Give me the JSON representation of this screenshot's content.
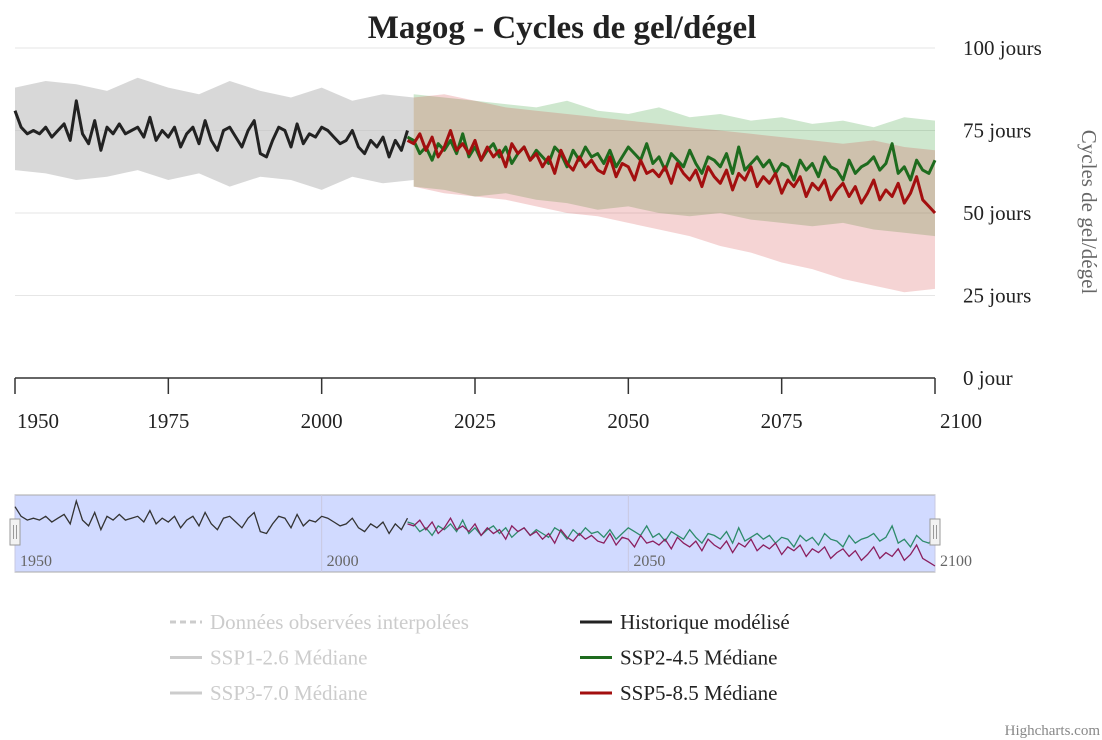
{
  "chart_data": {
    "type": "line",
    "title": "Magog - Cycles de gel/dégel",
    "y_axis_title": "Cycles de gel/dégel",
    "credits": "Highcharts.com",
    "xlim": [
      1950,
      2100
    ],
    "xticks": [
      1950,
      1975,
      2000,
      2025,
      2050,
      2075,
      2100
    ],
    "ylim": [
      0,
      100
    ],
    "yticks": [
      {
        "value": 0,
        "label": "0 jour"
      },
      {
        "value": 25,
        "label": "25 jours"
      },
      {
        "value": 50,
        "label": "50 jours"
      },
      {
        "value": 75,
        "label": "75 jours"
      },
      {
        "value": 100,
        "label": "100 jours"
      }
    ],
    "grid": true,
    "navigator_xticks": [
      1950,
      2000,
      2050,
      2100
    ],
    "x": [
      1950,
      1951,
      1952,
      1953,
      1954,
      1955,
      1956,
      1957,
      1958,
      1959,
      1960,
      1961,
      1962,
      1963,
      1964,
      1965,
      1966,
      1967,
      1968,
      1969,
      1970,
      1971,
      1972,
      1973,
      1974,
      1975,
      1976,
      1977,
      1978,
      1979,
      1980,
      1981,
      1982,
      1983,
      1984,
      1985,
      1986,
      1987,
      1988,
      1989,
      1990,
      1991,
      1992,
      1993,
      1994,
      1995,
      1996,
      1997,
      1998,
      1999,
      2000,
      2001,
      2002,
      2003,
      2004,
      2005,
      2006,
      2007,
      2008,
      2009,
      2010,
      2011,
      2012,
      2013,
      2014,
      2015,
      2016,
      2017,
      2018,
      2019,
      2020,
      2021,
      2022,
      2023,
      2024,
      2025,
      2026,
      2027,
      2028,
      2029,
      2030,
      2031,
      2032,
      2033,
      2034,
      2035,
      2036,
      2037,
      2038,
      2039,
      2040,
      2041,
      2042,
      2043,
      2044,
      2045,
      2046,
      2047,
      2048,
      2049,
      2050,
      2051,
      2052,
      2053,
      2054,
      2055,
      2056,
      2057,
      2058,
      2059,
      2060,
      2061,
      2062,
      2063,
      2064,
      2065,
      2066,
      2067,
      2068,
      2069,
      2070,
      2071,
      2072,
      2073,
      2074,
      2075,
      2076,
      2077,
      2078,
      2079,
      2080,
      2081,
      2082,
      2083,
      2084,
      2085,
      2086,
      2087,
      2088,
      2089,
      2090,
      2091,
      2092,
      2093,
      2094,
      2095,
      2096,
      2097,
      2098,
      2099,
      2100
    ],
    "series": [
      {
        "name": "Données observées interpolées",
        "visible": false,
        "dashed": true
      },
      {
        "name": "Historique modélisé",
        "visible": true,
        "color": "#222222",
        "navigator_color": "#333333",
        "values": [
          81,
          76,
          74,
          75,
          74,
          76,
          73,
          75,
          77,
          72,
          84,
          74,
          71,
          78,
          69,
          76,
          74,
          77,
          74,
          75,
          76,
          73,
          79,
          72,
          75,
          73,
          76,
          70,
          74,
          76,
          71,
          78,
          72,
          69,
          75,
          76,
          73,
          70,
          75,
          78,
          68,
          67,
          72,
          76,
          75,
          70,
          77,
          71,
          74,
          73,
          76,
          75,
          73,
          71,
          72,
          75,
          70,
          68,
          72,
          70,
          73,
          67,
          72,
          69,
          75,
          null,
          null,
          null,
          null,
          null,
          null,
          null,
          null,
          null,
          null,
          null,
          null,
          null,
          null,
          null,
          null,
          null,
          null,
          null,
          null,
          null,
          null,
          null,
          null,
          null,
          null,
          null,
          null,
          null,
          null,
          null,
          null,
          null,
          null,
          null,
          null,
          null,
          null,
          null,
          null,
          null,
          null,
          null,
          null,
          null,
          null,
          null,
          null,
          null,
          null,
          null,
          null,
          null,
          null,
          null,
          null,
          null,
          null,
          null,
          null,
          null,
          null,
          null,
          null,
          null,
          null,
          null,
          null,
          null,
          null,
          null,
          null,
          null,
          null,
          null,
          null,
          null,
          null,
          null,
          null,
          null,
          null,
          null,
          null,
          null,
          null
        ],
        "range": {
          "color": "rgba(190,190,190,0.6)",
          "x": [
            1950,
            1955,
            1960,
            1965,
            1970,
            1975,
            1980,
            1985,
            1990,
            1995,
            2000,
            2005,
            2010,
            2015
          ],
          "low": [
            63,
            62,
            60,
            61,
            63,
            60,
            62,
            58,
            61,
            60,
            57,
            61,
            59,
            60
          ],
          "high": [
            88,
            90,
            89,
            87,
            91,
            88,
            86,
            90,
            87,
            85,
            88,
            84,
            86,
            85
          ]
        }
      },
      {
        "name": "SSP1-2.6 Médiane",
        "visible": false
      },
      {
        "name": "SSP2-4.5 Médiane",
        "visible": true,
        "color": "#1e6b1e",
        "navigator_color": "#2e8b6b",
        "values": [
          null,
          null,
          null,
          null,
          null,
          null,
          null,
          null,
          null,
          null,
          null,
          null,
          null,
          null,
          null,
          null,
          null,
          null,
          null,
          null,
          null,
          null,
          null,
          null,
          null,
          null,
          null,
          null,
          null,
          null,
          null,
          null,
          null,
          null,
          null,
          null,
          null,
          null,
          null,
          null,
          null,
          null,
          null,
          null,
          null,
          null,
          null,
          null,
          null,
          null,
          null,
          null,
          null,
          null,
          null,
          null,
          null,
          null,
          null,
          null,
          null,
          null,
          null,
          null,
          73,
          72,
          68,
          70,
          66,
          71,
          69,
          72,
          68,
          74,
          67,
          70,
          66,
          69,
          71,
          67,
          70,
          65,
          68,
          70,
          66,
          69,
          67,
          65,
          70,
          68,
          64,
          69,
          66,
          70,
          67,
          68,
          65,
          69,
          64,
          67,
          70,
          68,
          66,
          71,
          65,
          67,
          63,
          68,
          66,
          64,
          69,
          65,
          62,
          67,
          66,
          64,
          68,
          62,
          70,
          63,
          65,
          67,
          64,
          66,
          62,
          65,
          64,
          60,
          66,
          63,
          65,
          61,
          67,
          64,
          63,
          60,
          66,
          62,
          64,
          65,
          67,
          63,
          65,
          71,
          62,
          64,
          60,
          66,
          63,
          62,
          66
        ],
        "range": {
          "color": "rgba(60,160,60,0.25)",
          "x": [
            2015,
            2020,
            2025,
            2030,
            2035,
            2040,
            2045,
            2050,
            2055,
            2060,
            2065,
            2070,
            2075,
            2080,
            2085,
            2090,
            2095,
            2100
          ],
          "low": [
            58,
            57,
            55,
            56,
            54,
            53,
            51,
            52,
            50,
            49,
            50,
            48,
            47,
            46,
            47,
            45,
            44,
            43
          ],
          "high": [
            86,
            85,
            84,
            83,
            82,
            84,
            81,
            80,
            82,
            79,
            80,
            78,
            79,
            77,
            78,
            76,
            79,
            78
          ]
        }
      },
      {
        "name": "SSP3-7.0 Médiane",
        "visible": false
      },
      {
        "name": "SSP5-8.5 Médiane",
        "visible": true,
        "color": "#a30f0f",
        "navigator_color": "#8b1f5f",
        "values": [
          null,
          null,
          null,
          null,
          null,
          null,
          null,
          null,
          null,
          null,
          null,
          null,
          null,
          null,
          null,
          null,
          null,
          null,
          null,
          null,
          null,
          null,
          null,
          null,
          null,
          null,
          null,
          null,
          null,
          null,
          null,
          null,
          null,
          null,
          null,
          null,
          null,
          null,
          null,
          null,
          null,
          null,
          null,
          null,
          null,
          null,
          null,
          null,
          null,
          null,
          null,
          null,
          null,
          null,
          null,
          null,
          null,
          null,
          null,
          null,
          null,
          null,
          null,
          null,
          72,
          71,
          74,
          69,
          73,
          67,
          70,
          75,
          69,
          71,
          68,
          72,
          66,
          70,
          67,
          69,
          64,
          71,
          68,
          70,
          66,
          68,
          64,
          67,
          62,
          69,
          65,
          63,
          67,
          64,
          66,
          63,
          62,
          67,
          61,
          65,
          64,
          60,
          66,
          62,
          63,
          61,
          64,
          59,
          65,
          62,
          60,
          63,
          58,
          64,
          61,
          59,
          63,
          57,
          62,
          60,
          64,
          58,
          61,
          59,
          62,
          56,
          60,
          58,
          61,
          55,
          59,
          57,
          60,
          54,
          57,
          59,
          55,
          58,
          53,
          56,
          60,
          54,
          57,
          55,
          59,
          53,
          56,
          61,
          54,
          52,
          50
        ],
        "range": {
          "color": "rgba(210,60,60,0.22)",
          "x": [
            2015,
            2020,
            2025,
            2030,
            2035,
            2040,
            2045,
            2050,
            2055,
            2060,
            2065,
            2070,
            2075,
            2080,
            2085,
            2090,
            2095,
            2100
          ],
          "low": [
            58,
            56,
            55,
            54,
            52,
            50,
            49,
            47,
            45,
            43,
            40,
            38,
            35,
            33,
            30,
            28,
            26,
            27
          ],
          "high": [
            85,
            86,
            84,
            82,
            81,
            80,
            79,
            78,
            77,
            76,
            75,
            74,
            73,
            72,
            71,
            72,
            70,
            69
          ]
        }
      }
    ]
  }
}
